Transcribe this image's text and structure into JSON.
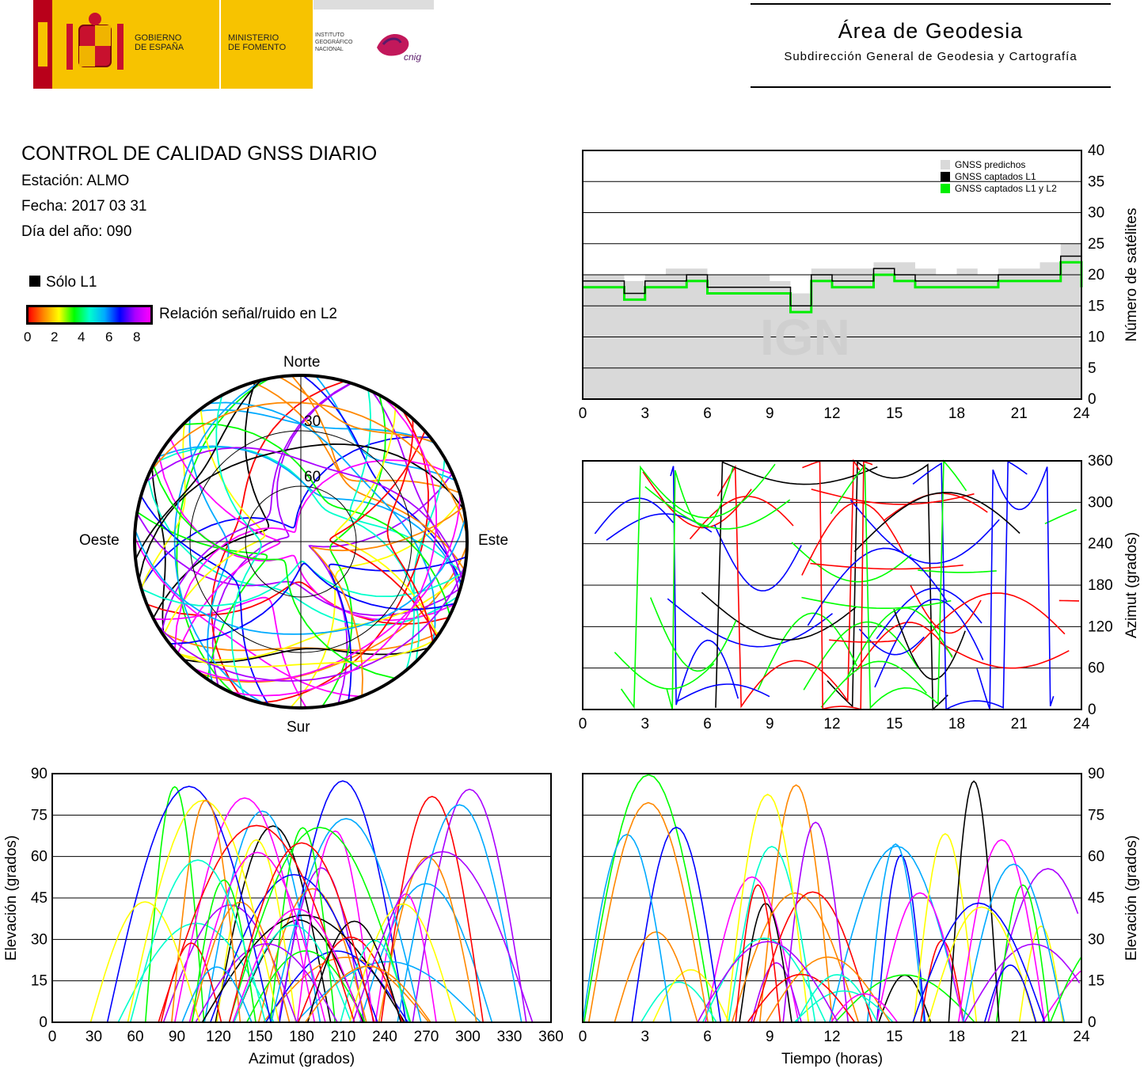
{
  "header": {
    "gobierno": "GOBIERNO\nDE ESPAÑA",
    "ministerio": "MINISTERIO\nDE FOMENTO",
    "instituto": "INSTITUTO\nGEOGRÁFICO\nNACIONAL",
    "cnig": "cnig",
    "area_title": "Área de Geodesia",
    "area_subtitle": "Subdirección General de Geodesia y Cartografía"
  },
  "report": {
    "title": "CONTROL DE CALIDAD GNSS DIARIO",
    "station": "Estación: ALMO",
    "date": "Fecha: 2017 03 31",
    "doy": "Día del año: 090",
    "legend_l1": "Sólo L1",
    "colorbar_label": "Relación señal/ruido en L2",
    "colorbar_ticks": [
      "0",
      "2",
      "4",
      "6",
      "8"
    ],
    "colorbar_colors": [
      "#ff0000",
      "#ff8800",
      "#ffff00",
      "#00ff00",
      "#00ffcc",
      "#00aaff",
      "#0000ff",
      "#aa00ff",
      "#ff00ff"
    ]
  },
  "watermark": "IGN",
  "chart_data": [
    {
      "type": "line",
      "id": "satellites",
      "ylabel": "Número de satélites",
      "xlabel": "",
      "xlim": [
        0,
        24
      ],
      "ylim": [
        0,
        40
      ],
      "xticks": [
        "0",
        "3",
        "6",
        "9",
        "12",
        "15",
        "18",
        "21",
        "24"
      ],
      "yticks": [
        "0",
        "5",
        "10",
        "15",
        "20",
        "25",
        "30",
        "35",
        "40"
      ],
      "grid": true,
      "legend_position": "top-right",
      "series": [
        {
          "name": "GNSS predichos",
          "color": "#d9d9d9",
          "x": [
            0,
            1,
            2,
            3,
            4,
            5,
            6,
            7,
            8,
            9,
            10,
            11,
            12,
            13,
            14,
            15,
            16,
            17,
            18,
            19,
            20,
            21,
            22,
            23,
            24
          ],
          "values": [
            20,
            20,
            19,
            20,
            21,
            21,
            20,
            20,
            20,
            19,
            17,
            21,
            21,
            21,
            22,
            22,
            21,
            20,
            21,
            20,
            21,
            21,
            22,
            25,
            21
          ]
        },
        {
          "name": "GNSS captados L1",
          "color": "#000000",
          "x": [
            0,
            1,
            2,
            3,
            4,
            5,
            6,
            7,
            8,
            9,
            10,
            11,
            12,
            13,
            14,
            15,
            16,
            17,
            18,
            19,
            20,
            21,
            22,
            23,
            24
          ],
          "values": [
            19,
            19,
            17,
            19,
            19,
            20,
            18,
            18,
            18,
            18,
            15,
            20,
            19,
            19,
            21,
            20,
            19,
            19,
            19,
            19,
            20,
            20,
            20,
            23,
            19
          ]
        },
        {
          "name": "GNSS captados L1 y L2",
          "color": "#00ee00",
          "x": [
            0,
            1,
            2,
            3,
            4,
            5,
            6,
            7,
            8,
            9,
            10,
            11,
            12,
            13,
            14,
            15,
            16,
            17,
            18,
            19,
            20,
            21,
            22,
            23,
            24
          ],
          "values": [
            18,
            18,
            16,
            18,
            18,
            19,
            17,
            17,
            17,
            17,
            14,
            19,
            18,
            18,
            20,
            19,
            18,
            18,
            18,
            18,
            19,
            19,
            19,
            22,
            18
          ]
        }
      ]
    },
    {
      "type": "scatter",
      "id": "skyplot",
      "xlabel": "",
      "ylabel": "",
      "directions": {
        "north": "Norte",
        "south": "Sur",
        "east": "Este",
        "west": "Oeste"
      },
      "elevation_rings": [
        "30",
        "60"
      ],
      "note": "Satellite tracks colored by L2 SNR; black tracks = only L1"
    },
    {
      "type": "scatter",
      "id": "azimuth_time",
      "xlabel": "",
      "ylabel": "Azimut (grados)",
      "xlim": [
        0,
        24
      ],
      "ylim": [
        0,
        360
      ],
      "xticks": [
        "0",
        "3",
        "6",
        "9",
        "12",
        "15",
        "18",
        "21",
        "24"
      ],
      "yticks": [
        "0",
        "60",
        "120",
        "180",
        "240",
        "300",
        "360"
      ],
      "grid": true
    },
    {
      "type": "scatter",
      "id": "elevation_azimuth",
      "xlabel": "Azimut (grados)",
      "ylabel": "Elevación (grados)",
      "xlim": [
        0,
        360
      ],
      "ylim": [
        0,
        90
      ],
      "xticks": [
        "0",
        "30",
        "60",
        "90",
        "120",
        "150",
        "180",
        "210",
        "240",
        "270",
        "300",
        "330",
        "360"
      ],
      "yticks": [
        "0",
        "15",
        "30",
        "45",
        "60",
        "75",
        "90"
      ],
      "grid": true
    },
    {
      "type": "scatter",
      "id": "elevation_time",
      "xlabel": "Tiempo (horas)",
      "ylabel": "Elevación (grados)",
      "xlim": [
        0,
        24
      ],
      "ylim": [
        0,
        90
      ],
      "xticks": [
        "0",
        "3",
        "6",
        "9",
        "12",
        "15",
        "18",
        "21",
        "24"
      ],
      "yticks": [
        "0",
        "15",
        "30",
        "45",
        "60",
        "75",
        "90"
      ],
      "grid": true
    }
  ]
}
